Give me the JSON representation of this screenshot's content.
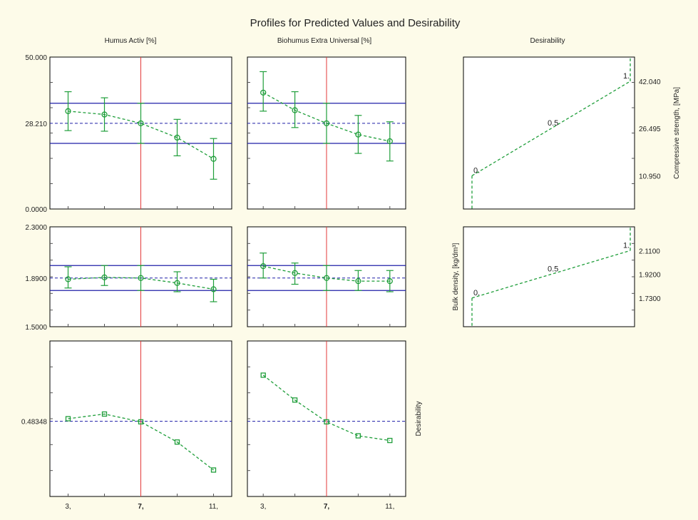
{
  "colors": {
    "background": "#fdfbe9",
    "panel": "#ffffff",
    "axis": "#000000",
    "limit_line": "#1f1fa8",
    "vertical_line": "#e33a3a",
    "series": "#1f9e3a",
    "tick": "#555555"
  },
  "chart_data": {
    "type": "line",
    "title": "Profiles for Predicted Values and Desirability",
    "column_titles": [
      "Humus Activ [%]",
      "Biohumus Extra Universal [%]",
      "Desirability"
    ],
    "x_values": [
      3,
      5,
      7,
      9,
      11
    ],
    "x_tick_labels": [
      "3,",
      "7,",
      "11,"
    ],
    "x_tick_positions": [
      3,
      7,
      11
    ],
    "current_x": 7,
    "rows": [
      {
        "response": "Compressive strength, [MPa]",
        "ylim": [
          0,
          50
        ],
        "y_tick_labels": [
          "50.000",
          "28.210",
          "0.0000"
        ],
        "y_tick_values": [
          50,
          28.21,
          0
        ],
        "current_value": 28.21,
        "ci_lines": [
          34.8,
          21.6
        ],
        "profiles": [
          {
            "factor": "Humus Activ [%]",
            "values": [
              32.2,
              31.1,
              28.2,
              23.5,
              16.5
            ],
            "ci": [
              [
                25.8,
                38.6
              ],
              [
                25.6,
                36.6
              ],
              [
                21.6,
                34.8
              ],
              [
                17.5,
                29.5
              ],
              [
                9.8,
                23.2
              ]
            ]
          },
          {
            "factor": "Biohumus Extra Universal [%]",
            "values": [
              38.3,
              32.5,
              28.2,
              24.5,
              22.3
            ],
            "ci": [
              [
                32.2,
                45.2
              ],
              [
                26.8,
                38.6
              ],
              [
                21.6,
                34.8
              ],
              [
                18.3,
                30.8
              ],
              [
                15.8,
                28.7
              ]
            ]
          }
        ],
        "desirability": {
          "ylabel": "Compressive strength, [MPa]",
          "ylim": [
            0,
            50
          ],
          "y_tick_labels": [
            "42.040",
            "26.495",
            "10.950"
          ],
          "y_tick_values": [
            42.04,
            26.495,
            10.95
          ],
          "points": [
            [
              0,
              10.95
            ],
            [
              0.5,
              26.495
            ],
            [
              1,
              42.04
            ]
          ],
          "labels": [
            "0.",
            "0.5",
            "1."
          ]
        }
      },
      {
        "response": "Bulk density, [kg/dm³]",
        "ylim": [
          1.5,
          2.3
        ],
        "y_tick_labels": [
          "2.3000",
          "1.8900",
          "1.5000"
        ],
        "y_tick_values": [
          2.3,
          1.89,
          1.5
        ],
        "current_value": 1.89,
        "ci_lines": [
          1.99,
          1.79
        ],
        "profiles": [
          {
            "factor": "Humus Activ [%]",
            "values": [
              1.88,
              1.895,
              1.89,
              1.85,
              1.8
            ],
            "ci": [
              [
                1.81,
                1.98
              ],
              [
                1.83,
                1.99
              ],
              [
                1.79,
                1.99
              ],
              [
                1.78,
                1.94
              ],
              [
                1.7,
                1.88
              ]
            ]
          },
          {
            "factor": "Biohumus Extra Universal [%]",
            "values": [
              1.985,
              1.93,
              1.89,
              1.865,
              1.865
            ],
            "ci": [
              [
                1.89,
                2.09
              ],
              [
                1.84,
                2.01
              ],
              [
                1.79,
                1.99
              ],
              [
                1.79,
                1.95
              ],
              [
                1.78,
                1.95
              ]
            ]
          }
        ],
        "desirability": {
          "ylabel": "Bulk density, [kg/dm³]",
          "ylim": [
            1.5,
            2.3
          ],
          "y_tick_labels": [
            "2.1100",
            "1.9200",
            "1.7300"
          ],
          "y_tick_values": [
            2.11,
            1.92,
            1.73
          ],
          "points": [
            [
              0,
              1.73
            ],
            [
              0.5,
              1.92
            ],
            [
              1,
              2.11
            ]
          ],
          "labels": [
            "0.",
            "0.5",
            "1."
          ]
        }
      },
      {
        "response": "Desirability",
        "ylabel": "Desirability",
        "ylim": [
          0,
          1
        ],
        "y_tick_labels": [
          "0.48348"
        ],
        "y_tick_values": [
          0.48348
        ],
        "current_value": 0.48348,
        "profiles": [
          {
            "factor": "Humus Activ [%]",
            "values": [
              0.5,
              0.53,
              0.48,
              0.35,
              0.17
            ]
          },
          {
            "factor": "Biohumus Extra Universal [%]",
            "values": [
              0.78,
              0.62,
              0.48,
              0.39,
              0.36
            ]
          }
        ]
      }
    ]
  }
}
